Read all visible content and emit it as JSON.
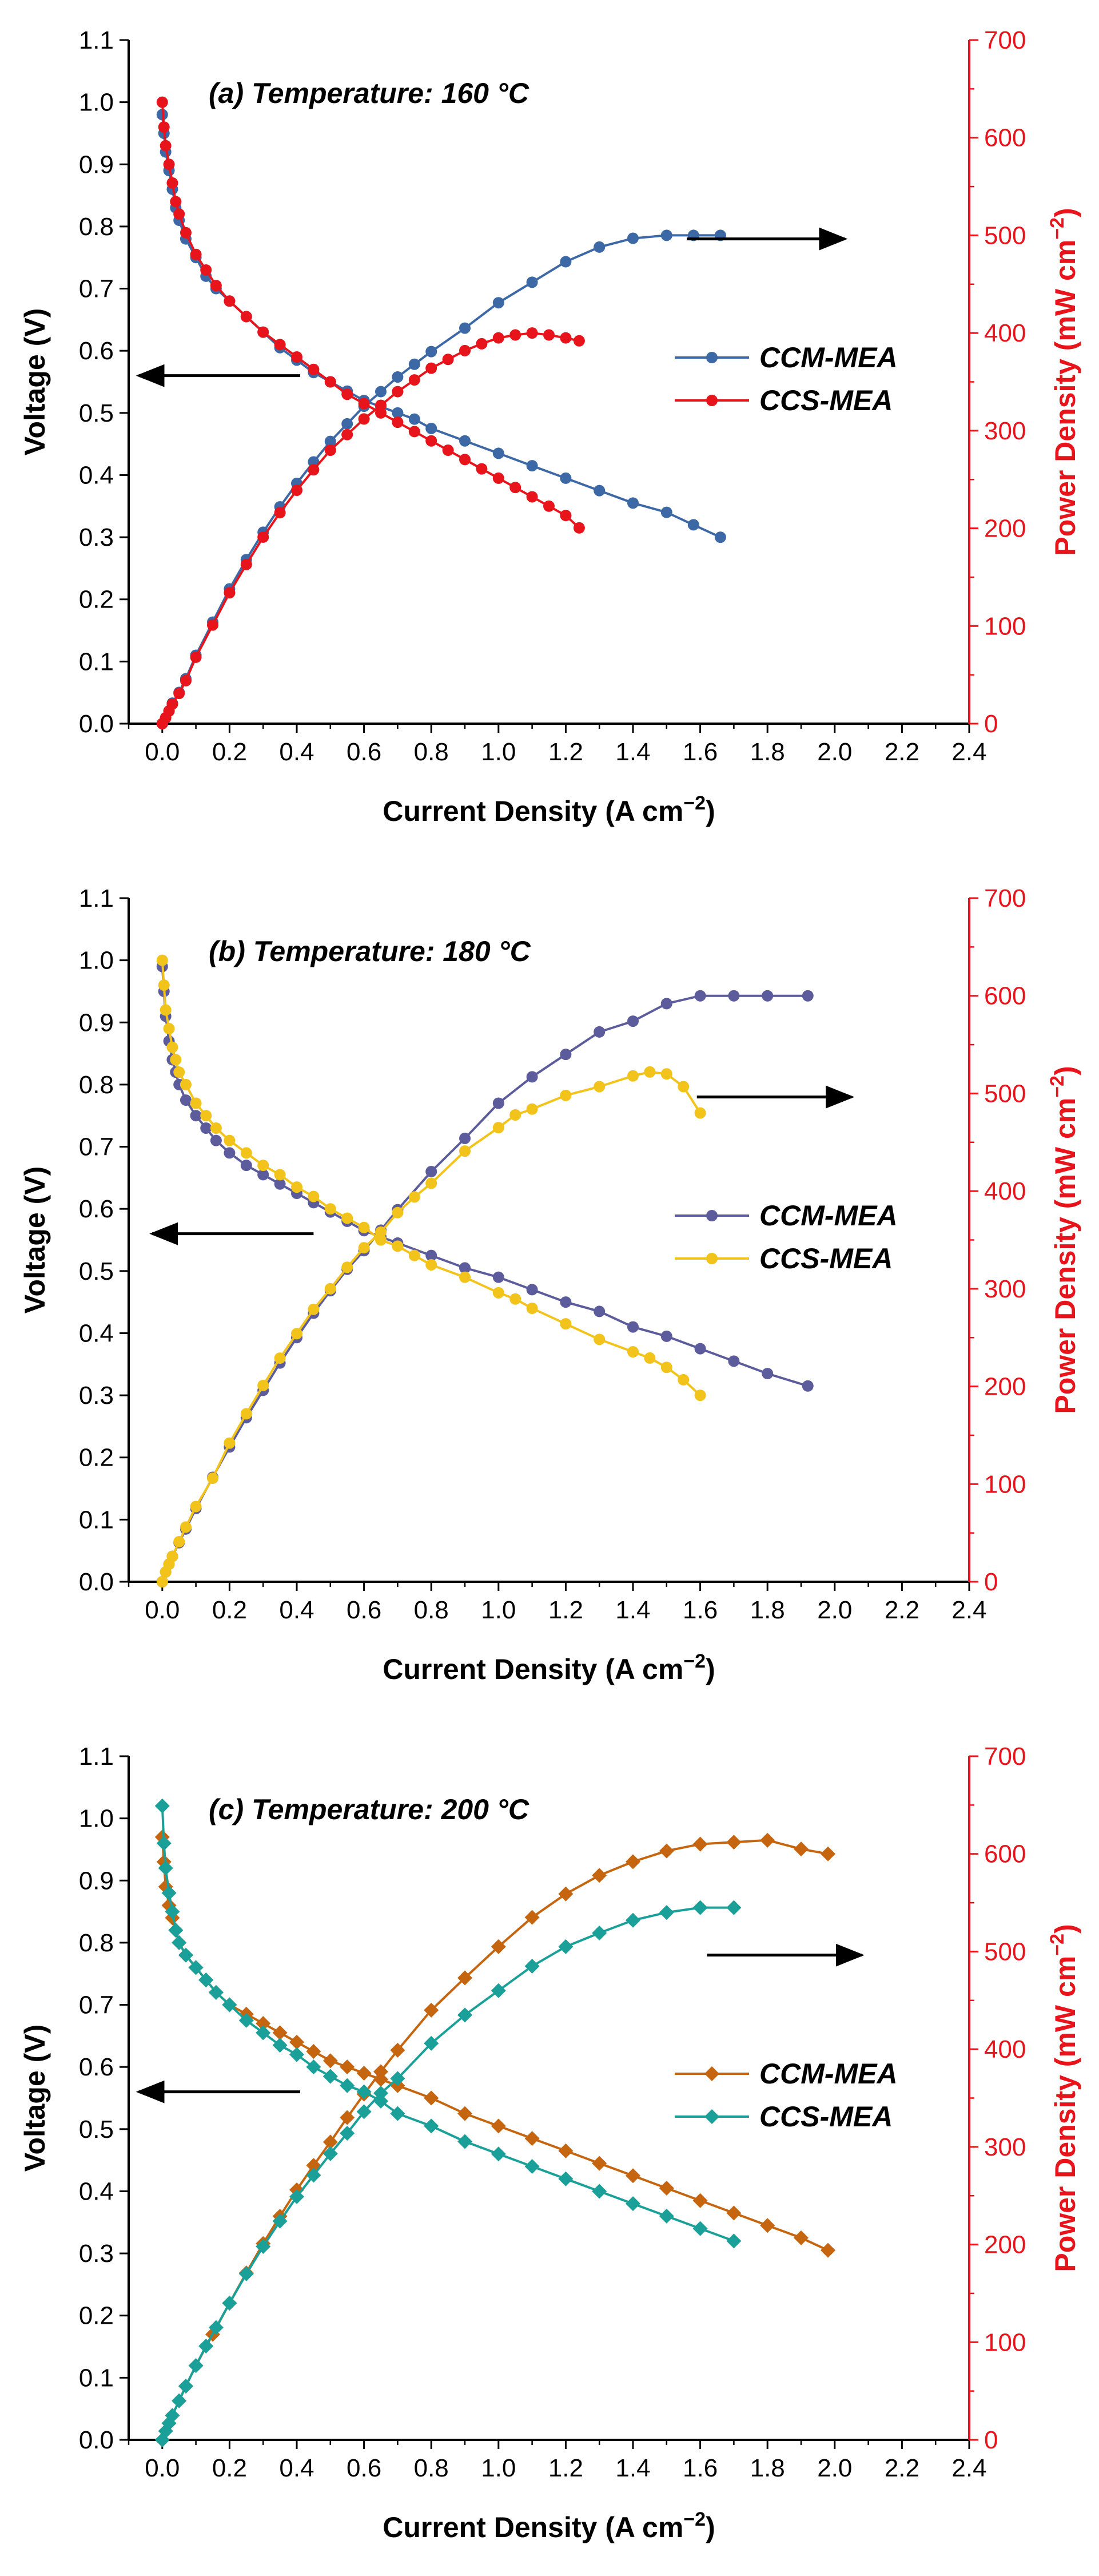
{
  "figure": {
    "background": "#ffffff",
    "right_axis_color": "#e8141b"
  },
  "chart_data": [
    {
      "type": "line",
      "title": "(a) Temperature: 160 °C",
      "xlabel": "Current Density (A cm",
      "xlabel_sup": "−2",
      "xlabel_tail": ")",
      "ylabel": "Voltage (V)",
      "y2label": "Power Density (mW cm",
      "y2label_sup": "−2",
      "y2label_tail": ")",
      "xlim": [
        -0.1,
        2.4
      ],
      "ylim": [
        0,
        1.1
      ],
      "y2lim": [
        0,
        700
      ],
      "x_ticks": [
        "0.0",
        "0.2",
        "0.4",
        "0.6",
        "0.8",
        "1.0",
        "1.2",
        "1.4",
        "1.6",
        "1.8",
        "2.0",
        "2.2",
        "2.4"
      ],
      "y_ticks": [
        "0.0",
        "0.1",
        "0.2",
        "0.3",
        "0.4",
        "0.5",
        "0.6",
        "0.7",
        "0.8",
        "0.9",
        "1.0",
        "1.1"
      ],
      "y2_ticks": [
        "0",
        "100",
        "200",
        "300",
        "400",
        "500",
        "600",
        "700"
      ],
      "marker": "circle",
      "legend": "right",
      "series": [
        {
          "name": "CCM-MEA",
          "color": "#3d68a6",
          "axis": "left",
          "x": [
            0,
            0.005,
            0.01,
            0.02,
            0.03,
            0.04,
            0.05,
            0.07,
            0.1,
            0.13,
            0.16,
            0.2,
            0.25,
            0.3,
            0.35,
            0.4,
            0.45,
            0.5,
            0.55,
            0.6,
            0.65,
            0.7,
            0.75,
            0.8,
            0.9,
            1.0,
            1.1,
            1.2,
            1.3,
            1.4,
            1.5,
            1.58,
            1.66
          ],
          "y": [
            0.98,
            0.95,
            0.92,
            0.89,
            0.86,
            0.83,
            0.81,
            0.78,
            0.75,
            0.72,
            0.7,
            0.68,
            0.655,
            0.63,
            0.605,
            0.585,
            0.565,
            0.55,
            0.535,
            0.52,
            0.51,
            0.5,
            0.49,
            0.475,
            0.455,
            0.435,
            0.415,
            0.395,
            0.375,
            0.355,
            0.34,
            0.32,
            0.3
          ]
        },
        {
          "name": "CCM-MEA",
          "color": "#3d68a6",
          "axis": "right",
          "x": [
            0,
            0.01,
            0.02,
            0.03,
            0.05,
            0.07,
            0.1,
            0.15,
            0.2,
            0.25,
            0.3,
            0.35,
            0.4,
            0.45,
            0.5,
            0.55,
            0.6,
            0.65,
            0.7,
            0.75,
            0.8,
            0.9,
            1.0,
            1.1,
            1.2,
            1.3,
            1.4,
            1.5,
            1.58,
            1.66
          ],
          "y": [
            0,
            6,
            13,
            21,
            32,
            46,
            70,
            104,
            138,
            168,
            196,
            222,
            246,
            268,
            289,
            307,
            325,
            340,
            355,
            368,
            381,
            405,
            431,
            452,
            473,
            488,
            497,
            500,
            500,
            500
          ]
        },
        {
          "name": "CCS-MEA",
          "color": "#e8141b",
          "axis": "left",
          "x": [
            0,
            0.005,
            0.01,
            0.02,
            0.03,
            0.04,
            0.05,
            0.07,
            0.1,
            0.13,
            0.16,
            0.2,
            0.25,
            0.3,
            0.35,
            0.4,
            0.45,
            0.5,
            0.55,
            0.6,
            0.65,
            0.7,
            0.75,
            0.8,
            0.85,
            0.9,
            0.95,
            1.0,
            1.05,
            1.1,
            1.15,
            1.2,
            1.24
          ],
          "y": [
            1.0,
            0.96,
            0.93,
            0.9,
            0.87,
            0.84,
            0.82,
            0.79,
            0.755,
            0.73,
            0.705,
            0.68,
            0.655,
            0.63,
            0.61,
            0.59,
            0.57,
            0.55,
            0.53,
            0.515,
            0.5,
            0.485,
            0.47,
            0.455,
            0.44,
            0.425,
            0.41,
            0.395,
            0.38,
            0.365,
            0.35,
            0.335,
            0.315
          ]
        },
        {
          "name": "CCS-MEA",
          "color": "#e8141b",
          "axis": "right",
          "x": [
            0,
            0.01,
            0.02,
            0.03,
            0.05,
            0.07,
            0.1,
            0.15,
            0.2,
            0.25,
            0.3,
            0.35,
            0.4,
            0.45,
            0.5,
            0.55,
            0.6,
            0.65,
            0.7,
            0.75,
            0.8,
            0.85,
            0.9,
            0.95,
            1.0,
            1.05,
            1.1,
            1.15,
            1.2,
            1.24
          ],
          "y": [
            0,
            6,
            13,
            20,
            31,
            44,
            68,
            101,
            134,
            163,
            191,
            216,
            239,
            260,
            280,
            296,
            312,
            326,
            340,
            352,
            364,
            373,
            382,
            389,
            395,
            398,
            400,
            398,
            395,
            392
          ]
        }
      ],
      "arrows": [
        {
          "direction": "left",
          "x_from": 0.41,
          "x_to": -0.07,
          "y": 0.56,
          "axis": "left"
        },
        {
          "direction": "right",
          "x_from": 1.56,
          "x_to": 2.03,
          "y": 0.78,
          "axis": "left"
        }
      ]
    },
    {
      "type": "line",
      "title": "(b) Temperature: 180 °C",
      "xlabel": "Current Density (A cm",
      "xlabel_sup": "−2",
      "xlabel_tail": ")",
      "ylabel": "Voltage (V)",
      "y2label": "Power Density (mW cm",
      "y2label_sup": "−2",
      "y2label_tail": ")",
      "xlim": [
        -0.1,
        2.4
      ],
      "ylim": [
        0,
        1.1
      ],
      "y2lim": [
        0,
        700
      ],
      "x_ticks": [
        "0.0",
        "0.2",
        "0.4",
        "0.6",
        "0.8",
        "1.0",
        "1.2",
        "1.4",
        "1.6",
        "1.8",
        "2.0",
        "2.2",
        "2.4"
      ],
      "y_ticks": [
        "0.0",
        "0.1",
        "0.2",
        "0.3",
        "0.4",
        "0.5",
        "0.6",
        "0.7",
        "0.8",
        "0.9",
        "1.0",
        "1.1"
      ],
      "y2_ticks": [
        "0",
        "100",
        "200",
        "300",
        "400",
        "500",
        "600",
        "700"
      ],
      "marker": "circle",
      "legend": "right",
      "series": [
        {
          "name": "CCM-MEA",
          "color": "#5c5c9c",
          "axis": "left",
          "x": [
            0,
            0.005,
            0.01,
            0.02,
            0.03,
            0.04,
            0.05,
            0.07,
            0.1,
            0.13,
            0.16,
            0.2,
            0.25,
            0.3,
            0.35,
            0.4,
            0.45,
            0.5,
            0.55,
            0.6,
            0.65,
            0.7,
            0.8,
            0.9,
            1.0,
            1.1,
            1.2,
            1.3,
            1.4,
            1.5,
            1.6,
            1.7,
            1.8,
            1.92
          ],
          "y": [
            0.99,
            0.95,
            0.91,
            0.87,
            0.84,
            0.82,
            0.8,
            0.775,
            0.75,
            0.73,
            0.71,
            0.69,
            0.67,
            0.655,
            0.64,
            0.625,
            0.61,
            0.595,
            0.58,
            0.565,
            0.555,
            0.545,
            0.525,
            0.505,
            0.49,
            0.47,
            0.45,
            0.435,
            0.41,
            0.395,
            0.375,
            0.355,
            0.335,
            0.315
          ]
        },
        {
          "name": "CCM-MEA",
          "color": "#5c5c9c",
          "axis": "right",
          "x": [
            0,
            0.01,
            0.02,
            0.03,
            0.05,
            0.07,
            0.1,
            0.15,
            0.2,
            0.25,
            0.3,
            0.35,
            0.4,
            0.45,
            0.5,
            0.55,
            0.6,
            0.65,
            0.7,
            0.8,
            0.9,
            1.0,
            1.1,
            1.2,
            1.3,
            1.4,
            1.5,
            1.6,
            1.7,
            1.8,
            1.92
          ],
          "y": [
            0,
            10,
            18,
            26,
            40,
            54,
            75,
            107,
            138,
            168,
            196,
            224,
            250,
            275,
            298,
            320,
            339,
            360,
            381,
            420,
            454,
            490,
            517,
            540,
            563,
            574,
            592,
            600,
            600,
            600,
            600
          ]
        },
        {
          "name": "CCS-MEA",
          "color": "#f2c31b",
          "axis": "left",
          "x": [
            0,
            0.005,
            0.01,
            0.02,
            0.03,
            0.04,
            0.05,
            0.07,
            0.1,
            0.13,
            0.16,
            0.2,
            0.25,
            0.3,
            0.35,
            0.4,
            0.45,
            0.5,
            0.55,
            0.6,
            0.65,
            0.7,
            0.75,
            0.8,
            0.9,
            1.0,
            1.05,
            1.1,
            1.2,
            1.3,
            1.4,
            1.45,
            1.5,
            1.55,
            1.6
          ],
          "y": [
            1.0,
            0.96,
            0.92,
            0.89,
            0.86,
            0.84,
            0.82,
            0.8,
            0.77,
            0.75,
            0.73,
            0.71,
            0.69,
            0.67,
            0.655,
            0.635,
            0.62,
            0.6,
            0.585,
            0.57,
            0.55,
            0.54,
            0.525,
            0.51,
            0.49,
            0.465,
            0.455,
            0.44,
            0.415,
            0.39,
            0.37,
            0.36,
            0.345,
            0.325,
            0.3
          ]
        },
        {
          "name": "CCS-MEA",
          "color": "#f2c31b",
          "axis": "right",
          "x": [
            0,
            0.01,
            0.02,
            0.03,
            0.05,
            0.07,
            0.1,
            0.15,
            0.2,
            0.25,
            0.3,
            0.35,
            0.4,
            0.45,
            0.5,
            0.55,
            0.6,
            0.65,
            0.7,
            0.75,
            0.8,
            0.9,
            1.0,
            1.05,
            1.1,
            1.2,
            1.3,
            1.4,
            1.45,
            1.5,
            1.55,
            1.6
          ],
          "y": [
            0,
            10,
            18,
            26,
            41,
            56,
            77,
            106,
            142,
            172,
            201,
            229,
            254,
            279,
            300,
            322,
            342,
            358,
            378,
            394,
            408,
            441,
            465,
            478,
            484,
            498,
            507,
            518,
            522,
            520,
            507,
            480
          ]
        }
      ],
      "arrows": [
        {
          "direction": "left",
          "x_from": 0.45,
          "x_to": -0.03,
          "y": 0.56,
          "axis": "left"
        },
        {
          "direction": "right",
          "x_from": 1.59,
          "x_to": 2.05,
          "y": 0.78,
          "axis": "left"
        }
      ]
    },
    {
      "type": "line",
      "title": "(c) Temperature: 200 °C",
      "xlabel": "Current Density (A cm",
      "xlabel_sup": "−2",
      "xlabel_tail": ")",
      "ylabel": "Voltage (V)",
      "y2label": "Power Density (mW cm",
      "y2label_sup": "−2",
      "y2label_tail": ")",
      "xlim": [
        -0.1,
        2.4
      ],
      "ylim": [
        0,
        1.1
      ],
      "y2lim": [
        0,
        700
      ],
      "x_ticks": [
        "0.0",
        "0.2",
        "0.4",
        "0.6",
        "0.8",
        "1.0",
        "1.2",
        "1.4",
        "1.6",
        "1.8",
        "2.0",
        "2.2",
        "2.4"
      ],
      "y_ticks": [
        "0.0",
        "0.1",
        "0.2",
        "0.3",
        "0.4",
        "0.5",
        "0.6",
        "0.7",
        "0.8",
        "0.9",
        "1.0",
        "1.1"
      ],
      "y2_ticks": [
        "0",
        "100",
        "200",
        "300",
        "400",
        "500",
        "600",
        "700"
      ],
      "marker": "diamond",
      "legend": "right",
      "series": [
        {
          "name": "CCM-MEA",
          "color": "#c5650f",
          "axis": "left",
          "x": [
            0,
            0.005,
            0.01,
            0.02,
            0.03,
            0.04,
            0.05,
            0.07,
            0.1,
            0.13,
            0.16,
            0.2,
            0.25,
            0.3,
            0.35,
            0.4,
            0.45,
            0.5,
            0.55,
            0.6,
            0.65,
            0.7,
            0.8,
            0.9,
            1.0,
            1.1,
            1.2,
            1.3,
            1.4,
            1.5,
            1.6,
            1.7,
            1.8,
            1.9,
            1.98
          ],
          "y": [
            0.97,
            0.93,
            0.89,
            0.86,
            0.84,
            0.82,
            0.8,
            0.78,
            0.76,
            0.74,
            0.72,
            0.7,
            0.685,
            0.67,
            0.655,
            0.64,
            0.625,
            0.61,
            0.6,
            0.59,
            0.58,
            0.57,
            0.55,
            0.525,
            0.505,
            0.485,
            0.465,
            0.445,
            0.425,
            0.405,
            0.385,
            0.365,
            0.345,
            0.325,
            0.305
          ]
        },
        {
          "name": "CCM-MEA",
          "color": "#c5650f",
          "axis": "right",
          "x": [
            0,
            0.01,
            0.02,
            0.03,
            0.05,
            0.07,
            0.1,
            0.15,
            0.2,
            0.25,
            0.3,
            0.35,
            0.4,
            0.45,
            0.5,
            0.55,
            0.6,
            0.65,
            0.7,
            0.8,
            0.9,
            1.0,
            1.1,
            1.2,
            1.3,
            1.4,
            1.5,
            1.6,
            1.7,
            1.8,
            1.9,
            1.98
          ],
          "y": [
            0,
            9,
            17,
            25,
            40,
            55,
            76,
            108,
            140,
            171,
            201,
            229,
            256,
            281,
            305,
            330,
            354,
            377,
            399,
            440,
            473,
            505,
            535,
            559,
            578,
            592,
            603,
            610,
            612,
            614,
            605,
            600
          ]
        },
        {
          "name": "CCS-MEA",
          "color": "#1aa098",
          "axis": "left",
          "x": [
            0,
            0.005,
            0.01,
            0.02,
            0.03,
            0.04,
            0.05,
            0.07,
            0.1,
            0.13,
            0.16,
            0.2,
            0.25,
            0.3,
            0.35,
            0.4,
            0.45,
            0.5,
            0.55,
            0.6,
            0.65,
            0.7,
            0.8,
            0.9,
            1.0,
            1.1,
            1.2,
            1.3,
            1.4,
            1.5,
            1.6,
            1.7
          ],
          "y": [
            1.02,
            0.96,
            0.92,
            0.88,
            0.85,
            0.82,
            0.8,
            0.78,
            0.76,
            0.74,
            0.72,
            0.7,
            0.675,
            0.655,
            0.635,
            0.62,
            0.6,
            0.585,
            0.57,
            0.56,
            0.545,
            0.525,
            0.505,
            0.48,
            0.46,
            0.44,
            0.42,
            0.4,
            0.38,
            0.36,
            0.34,
            0.32
          ]
        },
        {
          "name": "CCS-MEA",
          "color": "#1aa098",
          "axis": "right",
          "x": [
            0,
            0.01,
            0.02,
            0.03,
            0.05,
            0.07,
            0.1,
            0.13,
            0.16,
            0.2,
            0.25,
            0.3,
            0.35,
            0.4,
            0.45,
            0.5,
            0.55,
            0.6,
            0.65,
            0.7,
            0.8,
            0.9,
            1.0,
            1.1,
            1.2,
            1.3,
            1.4,
            1.5,
            1.6,
            1.7
          ],
          "y": [
            0,
            9,
            17,
            25,
            40,
            55,
            76,
            96,
            115,
            140,
            170,
            198,
            224,
            249,
            271,
            293,
            314,
            336,
            355,
            370,
            406,
            435,
            460,
            485,
            505,
            519,
            532,
            540,
            545,
            545
          ]
        }
      ],
      "arrows": [
        {
          "direction": "left",
          "x_from": 0.41,
          "x_to": -0.07,
          "y": 0.56,
          "axis": "left"
        },
        {
          "direction": "right",
          "x_from": 1.62,
          "x_to": 2.08,
          "y": 0.78,
          "axis": "left"
        }
      ]
    }
  ]
}
